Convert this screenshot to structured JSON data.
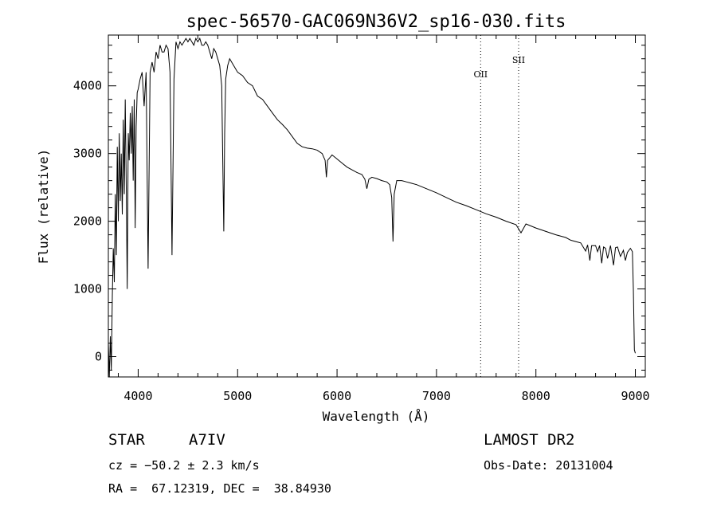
{
  "chart_data": {
    "type": "line",
    "title": "spec-56570-GAC069N36V2_sp16-030.fits",
    "xlabel": "Wavelength (Å)",
    "ylabel": "Flux (relative)",
    "xlim": [
      3700,
      9100
    ],
    "ylim": [
      -300,
      4750
    ],
    "xticks": [
      4000,
      5000,
      6000,
      7000,
      8000,
      9000
    ],
    "yticks": [
      0,
      1000,
      2000,
      3000,
      4000
    ],
    "xtick_labels": [
      "4000",
      "5000",
      "6000",
      "7000",
      "8000",
      "9000"
    ],
    "ytick_labels": [
      "0",
      "1000",
      "2000",
      "3000",
      "4000"
    ],
    "grid": false,
    "reference_lines": [
      {
        "label": "OII",
        "x": 7444
      },
      {
        "label": "SII",
        "x": 7826
      }
    ],
    "series": [
      {
        "x": [
          3700,
          3710,
          3720,
          3730,
          3740,
          3750,
          3760,
          3770,
          3780,
          3790,
          3800,
          3810,
          3820,
          3830,
          3840,
          3850,
          3860,
          3870,
          3880,
          3890,
          3900,
          3910,
          3920,
          3930,
          3940,
          3950,
          3960,
          3970,
          3980,
          3990,
          4000,
          4020,
          4040,
          4060,
          4080,
          4100,
          4120,
          4140,
          4160,
          4180,
          4200,
          4220,
          4240,
          4260,
          4280,
          4300,
          4320,
          4340,
          4360,
          4380,
          4400,
          4420,
          4440,
          4460,
          4480,
          4500,
          4520,
          4540,
          4560,
          4580,
          4600,
          4620,
          4640,
          4660,
          4680,
          4700,
          4720,
          4740,
          4760,
          4780,
          4800,
          4820,
          4840,
          4850,
          4861,
          4870,
          4880,
          4900,
          4920,
          4940,
          4960,
          4980,
          5000,
          5050,
          5100,
          5150,
          5200,
          5250,
          5300,
          5350,
          5400,
          5450,
          5500,
          5550,
          5600,
          5650,
          5700,
          5750,
          5800,
          5850,
          5880,
          5893,
          5905,
          5950,
          6000,
          6050,
          6100,
          6150,
          6200,
          6250,
          6280,
          6300,
          6320,
          6350,
          6400,
          6450,
          6500,
          6530,
          6550,
          6563,
          6575,
          6600,
          6650,
          6700,
          6750,
          6800,
          6900,
          7000,
          7100,
          7200,
          7300,
          7400,
          7500,
          7600,
          7700,
          7800,
          7850,
          7900,
          8000,
          8100,
          8200,
          8300,
          8350,
          8400,
          8450,
          8500,
          8520,
          8542,
          8560,
          8600,
          8620,
          8640,
          8662,
          8680,
          8700,
          8720,
          8750,
          8780,
          8800,
          8820,
          8850,
          8880,
          8900,
          8920,
          8950,
          8970,
          8980,
          8990,
          9000
        ],
        "y": [
          200,
          -300,
          300,
          -200,
          900,
          1600,
          1100,
          2400,
          1500,
          3100,
          2000,
          3300,
          2300,
          3000,
          2100,
          3500,
          2400,
          3800,
          2500,
          1000,
          3300,
          2900,
          3600,
          3000,
          3700,
          2600,
          3800,
          1900,
          3400,
          3900,
          3950,
          4100,
          4200,
          3700,
          4200,
          1300,
          4200,
          4350,
          4200,
          4500,
          4400,
          4600,
          4500,
          4500,
          4600,
          4550,
          4200,
          1500,
          4100,
          4650,
          4550,
          4650,
          4600,
          4650,
          4700,
          4650,
          4700,
          4650,
          4600,
          4700,
          4650,
          4700,
          4600,
          4600,
          4650,
          4600,
          4500,
          4400,
          4550,
          4500,
          4400,
          4300,
          4000,
          3000,
          1850,
          3300,
          4100,
          4300,
          4400,
          4350,
          4300,
          4250,
          4200,
          4150,
          4050,
          4000,
          3850,
          3800,
          3700,
          3600,
          3500,
          3430,
          3350,
          3250,
          3150,
          3100,
          3080,
          3070,
          3050,
          3000,
          2900,
          2650,
          2900,
          2980,
          2920,
          2860,
          2800,
          2760,
          2720,
          2690,
          2620,
          2480,
          2620,
          2650,
          2630,
          2600,
          2580,
          2540,
          2350,
          1700,
          2400,
          2600,
          2600,
          2580,
          2560,
          2540,
          2480,
          2420,
          2350,
          2280,
          2230,
          2170,
          2110,
          2060,
          2000,
          1950,
          1830,
          1960,
          1900,
          1850,
          1800,
          1760,
          1720,
          1700,
          1680,
          1560,
          1650,
          1420,
          1640,
          1640,
          1550,
          1640,
          1380,
          1620,
          1600,
          1450,
          1640,
          1350,
          1610,
          1620,
          1480,
          1570,
          1420,
          1540,
          1600,
          1550,
          1000,
          100,
          50
        ]
      }
    ]
  },
  "info": {
    "object_type": "STAR",
    "spectral_class": "A7IV",
    "cz": "cz = −50.2 ± 2.3 km/s",
    "coords": "RA =  67.12319, DEC =  38.84930",
    "survey": "LAMOST DR2",
    "obs_date": "Obs-Date: 20131004"
  }
}
